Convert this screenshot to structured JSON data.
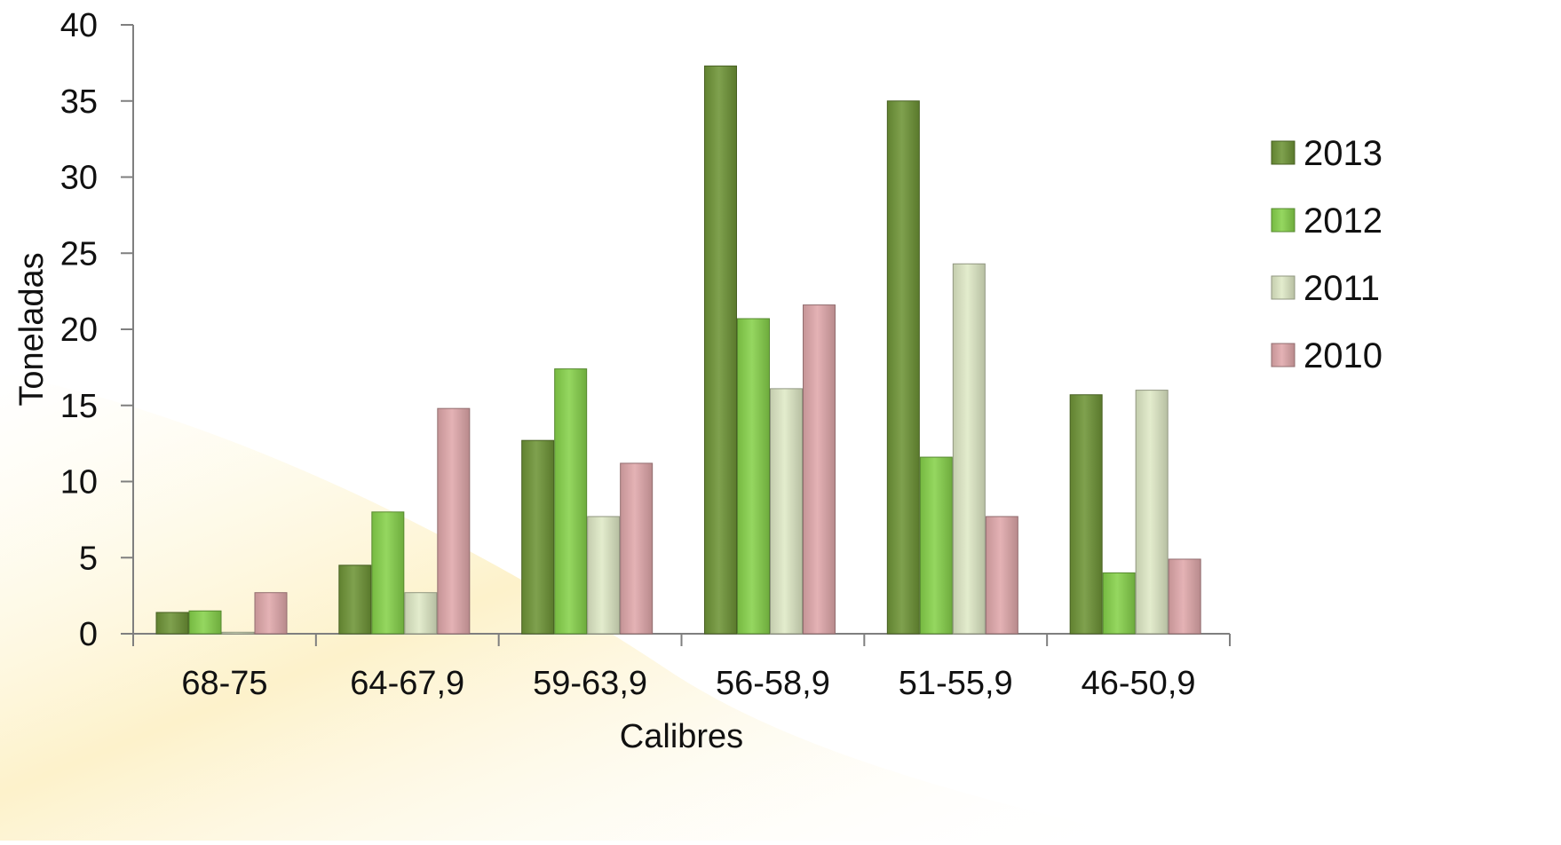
{
  "chart_data": {
    "type": "bar",
    "xlabel": "Calibres",
    "ylabel": "Toneladas",
    "ylim": [
      0,
      40
    ],
    "yticks": [
      0,
      5,
      10,
      15,
      20,
      25,
      30,
      35,
      40
    ],
    "categories": [
      "68-75",
      "64-67,9",
      "59-63,9",
      "56-58,9",
      "51-55,9",
      "46-50,9"
    ],
    "series": [
      {
        "name": "2013",
        "values": [
          1.4,
          4.5,
          12.7,
          37.3,
          35.0,
          15.7
        ]
      },
      {
        "name": "2012",
        "values": [
          1.5,
          8.0,
          17.4,
          20.7,
          11.6,
          4.0
        ]
      },
      {
        "name": "2011",
        "values": [
          0.1,
          2.7,
          7.7,
          16.1,
          24.3,
          16.0
        ]
      },
      {
        "name": "2010",
        "values": [
          2.7,
          14.8,
          11.2,
          21.6,
          7.7,
          4.9
        ]
      }
    ],
    "grid": false,
    "legend_position": "right",
    "colors": {
      "2013": "#6e9436",
      "2012": "#86d24a",
      "2011": "#dfe9c6",
      "2010": "#e0a8ab"
    }
  }
}
